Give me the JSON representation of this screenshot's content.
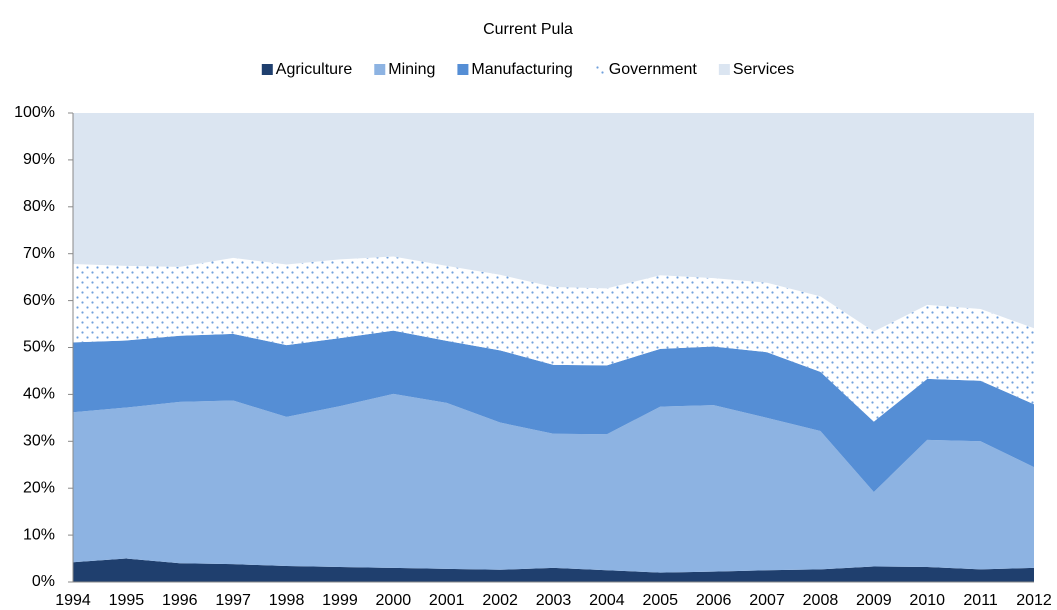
{
  "chart_data": {
    "type": "stacked_area",
    "title": "Current Pula",
    "categories": [
      "1994",
      "1995",
      "1996",
      "1997",
      "1998",
      "1999",
      "2000",
      "2001",
      "2002",
      "2003",
      "2004",
      "2005",
      "2006",
      "2007",
      "2008",
      "2009",
      "2010",
      "2011",
      "2012"
    ],
    "series": [
      {
        "name": "Agriculture",
        "color": "#1f3f6e",
        "values": [
          4.2,
          5.0,
          4.0,
          3.8,
          3.4,
          3.2,
          3.0,
          2.8,
          2.6,
          3.0,
          2.5,
          2.0,
          2.2,
          2.5,
          2.7,
          3.3,
          3.2,
          2.7,
          3.0
        ]
      },
      {
        "name": "Mining",
        "color": "#8db3e2",
        "values": [
          32.0,
          32.2,
          34.4,
          34.9,
          31.8,
          34.3,
          37.1,
          35.4,
          31.4,
          28.6,
          29.0,
          35.4,
          35.5,
          32.5,
          29.5,
          15.9,
          27.1,
          27.3,
          21.5
        ]
      },
      {
        "name": "Manufacturing",
        "color": "#558ed5",
        "values": [
          14.9,
          14.3,
          14.1,
          14.2,
          15.3,
          14.5,
          13.5,
          13.2,
          15.4,
          14.7,
          14.7,
          12.3,
          12.5,
          14.0,
          12.6,
          15.0,
          13.0,
          12.9,
          13.4
        ]
      },
      {
        "name": "Government",
        "color": "#6fa0dc",
        "pattern": "dots",
        "values": [
          16.7,
          15.9,
          14.7,
          16.2,
          17.2,
          16.8,
          15.8,
          16.0,
          16.1,
          16.6,
          16.4,
          15.7,
          14.6,
          14.8,
          16.1,
          19.2,
          15.8,
          15.3,
          16.2
        ]
      },
      {
        "name": "Services",
        "color": "#dbe5f1",
        "values": [
          32.2,
          32.6,
          32.8,
          30.9,
          32.3,
          31.2,
          30.6,
          32.6,
          34.5,
          37.1,
          37.4,
          34.6,
          35.2,
          36.2,
          39.1,
          46.6,
          40.9,
          41.8,
          45.9
        ]
      }
    ],
    "ylim": [
      0,
      100
    ],
    "yticks": [
      {
        "value": 0,
        "label": "0%"
      },
      {
        "value": 10,
        "label": "10%"
      },
      {
        "value": 20,
        "label": "20%"
      },
      {
        "value": 30,
        "label": "30%"
      },
      {
        "value": 40,
        "label": "40%"
      },
      {
        "value": 50,
        "label": "50%"
      },
      {
        "value": 60,
        "label": "60%"
      },
      {
        "value": 70,
        "label": "70%"
      },
      {
        "value": 80,
        "label": "80%"
      },
      {
        "value": 90,
        "label": "90%"
      },
      {
        "value": 100,
        "label": "100%"
      }
    ],
    "legend": "top"
  }
}
